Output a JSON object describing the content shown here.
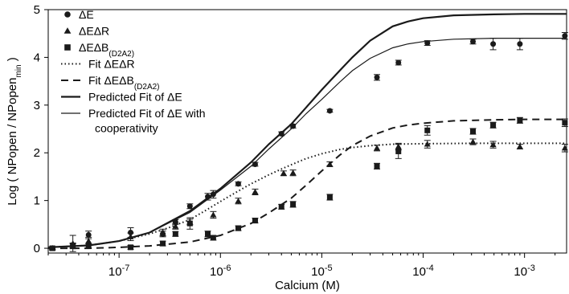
{
  "chart_data": {
    "type": "scatter",
    "xlabel": "Calcium (M)",
    "ylabel": {
      "prefix": "Log ( NPopen / NPopen",
      "sub": "min",
      "suffix": " )"
    },
    "xscale": "log",
    "xlim": [
      2e-08,
      0.0026
    ],
    "ylim": [
      -0.1,
      5
    ],
    "yticks": [
      0,
      1,
      2,
      3,
      4,
      5
    ],
    "xticks": [
      {
        "value": 1e-07,
        "base": "10",
        "exp": "-7"
      },
      {
        "value": 1e-06,
        "base": "10",
        "exp": "-6"
      },
      {
        "value": 1e-05,
        "base": "10",
        "exp": "-5"
      },
      {
        "value": 0.0001,
        "base": "10",
        "exp": "-4"
      },
      {
        "value": 0.001,
        "base": "10",
        "exp": "-3"
      }
    ],
    "legend_position": "top-left",
    "series": [
      {
        "name": "ΔE",
        "name_sub": "",
        "kind": "points",
        "marker": "circle",
        "color": "#1a1a1a",
        "points": [
          {
            "x": 2.2e-08,
            "y": 0.0,
            "err": 0.03
          },
          {
            "x": 3.5e-08,
            "y": 0.05,
            "err": 0.06
          },
          {
            "x": 5e-08,
            "y": 0.28,
            "err": 0.08
          },
          {
            "x": 1.3e-07,
            "y": 0.33,
            "err": 0.1
          },
          {
            "x": 2.7e-07,
            "y": 0.3,
            "err": 0.06
          },
          {
            "x": 3.6e-07,
            "y": 0.55,
            "err": 0.05
          },
          {
            "x": 5e-07,
            "y": 0.88,
            "err": 0.05
          },
          {
            "x": 7.5e-07,
            "y": 1.08,
            "err": 0.07
          },
          {
            "x": 8.5e-07,
            "y": 1.13,
            "err": 0.08
          },
          {
            "x": 1.5e-06,
            "y": 1.35,
            "err": 0.04
          },
          {
            "x": 2.2e-06,
            "y": 1.76,
            "err": 0.04
          },
          {
            "x": 4e-06,
            "y": 2.4,
            "err": 0.04
          },
          {
            "x": 5.2e-06,
            "y": 2.56,
            "err": 0.04
          },
          {
            "x": 1.2e-05,
            "y": 2.88,
            "err": 0.03
          },
          {
            "x": 3.5e-05,
            "y": 3.58,
            "err": 0.06
          },
          {
            "x": 5.7e-05,
            "y": 3.89,
            "err": 0.05
          },
          {
            "x": 0.00011,
            "y": 4.3,
            "err": 0.05
          },
          {
            "x": 0.00031,
            "y": 4.33,
            "err": 0.05
          },
          {
            "x": 0.00049,
            "y": 4.28,
            "err": 0.12
          },
          {
            "x": 0.0009,
            "y": 4.28,
            "err": 0.12
          },
          {
            "x": 0.0025,
            "y": 4.45,
            "err": 0.07
          }
        ]
      },
      {
        "name": "ΔEΔR",
        "name_sub": "",
        "kind": "points",
        "marker": "triangle",
        "color": "#1a1a1a",
        "points": [
          {
            "x": 2.2e-08,
            "y": 0.0,
            "err": 0.03
          },
          {
            "x": 3.5e-08,
            "y": 0.1,
            "err": 0.17
          },
          {
            "x": 5e-08,
            "y": 0.15,
            "err": 0.08
          },
          {
            "x": 1.3e-07,
            "y": 0.24,
            "err": 0.08
          },
          {
            "x": 2.7e-07,
            "y": 0.33,
            "err": 0.07
          },
          {
            "x": 3.6e-07,
            "y": 0.46,
            "err": 0.06
          },
          {
            "x": 5e-07,
            "y": 0.55,
            "err": 0.06
          },
          {
            "x": 8.5e-07,
            "y": 0.7,
            "err": 0.07
          },
          {
            "x": 1.5e-06,
            "y": 0.99,
            "err": 0.06
          },
          {
            "x": 2.2e-06,
            "y": 1.18,
            "err": 0.06
          },
          {
            "x": 4.2e-06,
            "y": 1.57,
            "err": 0.05
          },
          {
            "x": 5.2e-06,
            "y": 1.58,
            "err": 0.06
          },
          {
            "x": 1.2e-05,
            "y": 1.76,
            "err": 0.05
          },
          {
            "x": 3.5e-05,
            "y": 2.1,
            "err": 0.06
          },
          {
            "x": 5.7e-05,
            "y": 2.13,
            "err": 0.07
          },
          {
            "x": 0.00011,
            "y": 2.18,
            "err": 0.08
          },
          {
            "x": 0.00031,
            "y": 2.23,
            "err": 0.06
          },
          {
            "x": 0.00049,
            "y": 2.17,
            "err": 0.07
          },
          {
            "x": 0.0009,
            "y": 2.13,
            "err": 0.05
          },
          {
            "x": 0.0025,
            "y": 2.1,
            "err": 0.08
          }
        ]
      },
      {
        "name": "ΔEΔB",
        "name_sub": "(D2A2)",
        "kind": "points",
        "marker": "square",
        "color": "#1a1a1a",
        "points": [
          {
            "x": 2.2e-08,
            "y": 0.0,
            "err": 0.03
          },
          {
            "x": 3.5e-08,
            "y": 0.05,
            "err": 0.04
          },
          {
            "x": 5e-08,
            "y": 0.05,
            "err": 0.05
          },
          {
            "x": 1.3e-07,
            "y": 0.02,
            "err": 0.04
          },
          {
            "x": 2.7e-07,
            "y": 0.1,
            "err": 0.05
          },
          {
            "x": 3.6e-07,
            "y": 0.3,
            "err": 0.05
          },
          {
            "x": 5e-07,
            "y": 0.52,
            "err": 0.12
          },
          {
            "x": 7.5e-07,
            "y": 0.3,
            "err": 0.06
          },
          {
            "x": 8.5e-07,
            "y": 0.22,
            "err": 0.05
          },
          {
            "x": 1.5e-06,
            "y": 0.42,
            "err": 0.05
          },
          {
            "x": 2.2e-06,
            "y": 0.58,
            "err": 0.05
          },
          {
            "x": 4e-06,
            "y": 0.87,
            "err": 0.05
          },
          {
            "x": 5.2e-06,
            "y": 0.92,
            "err": 0.06
          },
          {
            "x": 1.2e-05,
            "y": 1.07,
            "err": 0.06
          },
          {
            "x": 3.5e-05,
            "y": 1.72,
            "err": 0.06
          },
          {
            "x": 5.7e-05,
            "y": 2.03,
            "err": 0.15
          },
          {
            "x": 0.00011,
            "y": 2.47,
            "err": 0.1
          },
          {
            "x": 0.00031,
            "y": 2.45,
            "err": 0.06
          },
          {
            "x": 0.00049,
            "y": 2.58,
            "err": 0.06
          },
          {
            "x": 0.0009,
            "y": 2.68,
            "err": 0.06
          },
          {
            "x": 0.0025,
            "y": 2.63,
            "err": 0.08
          }
        ]
      },
      {
        "name": "Fit ΔEΔR",
        "name_sub": "",
        "kind": "curve",
        "dash": "dotted",
        "color": "#1a1a1a",
        "x": [
          2e-08,
          5e-08,
          1e-07,
          2e-07,
          3e-07,
          5e-07,
          7e-07,
          1e-06,
          1.5e-06,
          2e-06,
          3e-06,
          4e-06,
          5e-06,
          7e-06,
          1e-05,
          1.5e-05,
          2e-05,
          3e-05,
          5e-05,
          0.0001,
          0.0003,
          0.001,
          0.0026
        ],
        "y": [
          0.02,
          0.06,
          0.15,
          0.3,
          0.42,
          0.6,
          0.78,
          0.98,
          1.2,
          1.35,
          1.54,
          1.66,
          1.75,
          1.88,
          1.98,
          2.07,
          2.11,
          2.15,
          2.18,
          2.19,
          2.2,
          2.2,
          2.2
        ]
      },
      {
        "name": "Fit ΔEΔB",
        "name_sub": "(D2A2)",
        "kind": "curve",
        "dash": "dashed",
        "color": "#1a1a1a",
        "x": [
          2e-08,
          5e-08,
          1e-07,
          2e-07,
          5e-07,
          1e-06,
          2e-06,
          3e-06,
          5e-06,
          7e-06,
          1e-05,
          1.5e-05,
          2e-05,
          3e-05,
          5e-05,
          7e-05,
          0.0001,
          0.0002,
          0.0005,
          0.001,
          0.0026
        ],
        "y": [
          0.0,
          0.0,
          0.02,
          0.05,
          0.13,
          0.27,
          0.52,
          0.74,
          1.05,
          1.32,
          1.62,
          1.95,
          2.15,
          2.35,
          2.52,
          2.58,
          2.62,
          2.67,
          2.69,
          2.7,
          2.7
        ]
      },
      {
        "name": "Predicted Fit of ΔE",
        "name_sub": "",
        "kind": "curve",
        "dash": "solid-thick",
        "color": "#1a1a1a",
        "x": [
          2e-08,
          5e-08,
          1e-07,
          2e-07,
          5e-07,
          1e-06,
          2e-06,
          3e-06,
          5e-06,
          7e-06,
          1e-05,
          1.5e-05,
          2e-05,
          3e-05,
          5e-05,
          7e-05,
          0.0001,
          0.0002,
          0.0005,
          0.001,
          0.0026
        ],
        "y": [
          0.02,
          0.06,
          0.15,
          0.33,
          0.78,
          1.25,
          1.8,
          2.18,
          2.6,
          2.95,
          3.32,
          3.72,
          4.0,
          4.35,
          4.65,
          4.75,
          4.82,
          4.88,
          4.9,
          4.91,
          4.91
        ]
      },
      {
        "name": "Predicted Fit of ΔE with",
        "name_line2": "cooperativity",
        "name_sub": "",
        "kind": "curve",
        "dash": "solid-thin",
        "color": "#1a1a1a",
        "x": [
          2e-08,
          5e-08,
          1e-07,
          2e-07,
          5e-07,
          1e-06,
          2e-06,
          3e-06,
          5e-06,
          7e-06,
          1e-05,
          1.5e-05,
          2e-05,
          3e-05,
          5e-05,
          7e-05,
          0.0001,
          0.0002,
          0.0005,
          0.001,
          0.0026
        ],
        "y": [
          0.02,
          0.06,
          0.15,
          0.33,
          0.75,
          1.22,
          1.72,
          2.08,
          2.5,
          2.82,
          3.12,
          3.48,
          3.72,
          3.98,
          4.2,
          4.28,
          4.33,
          4.38,
          4.4,
          4.4,
          4.4
        ]
      }
    ]
  }
}
